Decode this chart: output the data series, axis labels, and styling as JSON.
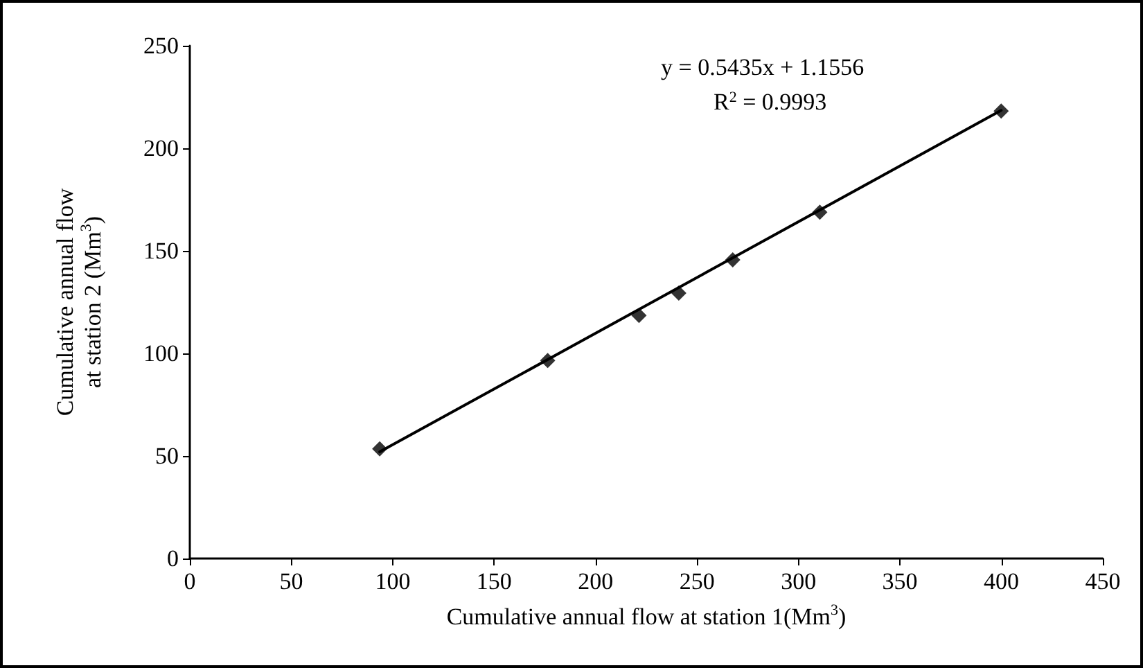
{
  "chart_data": {
    "type": "scatter",
    "xlabel": "Cumulative annual flow at station 1(Mm$^{3}$)",
    "ylabel": "Cumulative annual flow\nat station 2 (Mm$^{3}$)",
    "annotations": [
      "y = 0.5435x + 1.1556",
      "R$^{2}$ = 0.9993"
    ],
    "series": [
      {
        "color": "#000000",
        "marker": "diamond",
        "x": [
          93.6,
          176.4,
          221.4,
          241,
          267.6,
          310.5,
          399.9
        ],
        "values": [
          53.5,
          96.5,
          118.5,
          129.4,
          145.6,
          168.8,
          218.2
        ]
      },
      {
        "type": "line",
        "color": "#000000",
        "marker": "none",
        "line_style": "solid",
        "x": [
          93.6,
          399.9
        ],
        "values": [
          52.0,
          218.5
        ]
      }
    ],
    "xlim": [
      0,
      450
    ],
    "xticks": [
      0,
      50,
      100,
      150,
      200,
      250,
      300,
      350,
      400,
      450
    ],
    "ylim": [
      0,
      250
    ],
    "yticks": [
      0,
      50,
      100,
      150,
      200,
      250
    ],
    "grid": false
  }
}
